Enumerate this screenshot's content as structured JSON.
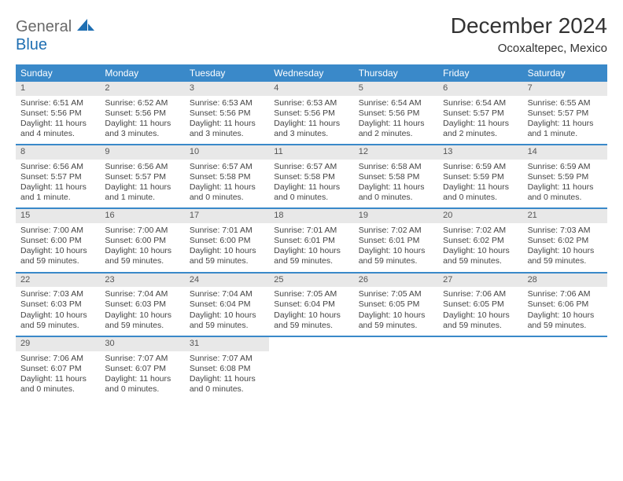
{
  "brand": {
    "word1": "General",
    "word2": "Blue"
  },
  "title": "December 2024",
  "location": "Ocoxaltepec, Mexico",
  "colors": {
    "header_bg": "#3a89c9",
    "header_text": "#ffffff",
    "daynum_bg": "#e8e8e8",
    "rule": "#3a89c9",
    "brand_gray": "#6a6a6a",
    "brand_blue": "#1f6fb2"
  },
  "day_names": [
    "Sunday",
    "Monday",
    "Tuesday",
    "Wednesday",
    "Thursday",
    "Friday",
    "Saturday"
  ],
  "weeks": [
    [
      {
        "n": "1",
        "sr": "Sunrise: 6:51 AM",
        "ss": "Sunset: 5:56 PM",
        "dl": "Daylight: 11 hours and 4 minutes."
      },
      {
        "n": "2",
        "sr": "Sunrise: 6:52 AM",
        "ss": "Sunset: 5:56 PM",
        "dl": "Daylight: 11 hours and 3 minutes."
      },
      {
        "n": "3",
        "sr": "Sunrise: 6:53 AM",
        "ss": "Sunset: 5:56 PM",
        "dl": "Daylight: 11 hours and 3 minutes."
      },
      {
        "n": "4",
        "sr": "Sunrise: 6:53 AM",
        "ss": "Sunset: 5:56 PM",
        "dl": "Daylight: 11 hours and 3 minutes."
      },
      {
        "n": "5",
        "sr": "Sunrise: 6:54 AM",
        "ss": "Sunset: 5:56 PM",
        "dl": "Daylight: 11 hours and 2 minutes."
      },
      {
        "n": "6",
        "sr": "Sunrise: 6:54 AM",
        "ss": "Sunset: 5:57 PM",
        "dl": "Daylight: 11 hours and 2 minutes."
      },
      {
        "n": "7",
        "sr": "Sunrise: 6:55 AM",
        "ss": "Sunset: 5:57 PM",
        "dl": "Daylight: 11 hours and 1 minute."
      }
    ],
    [
      {
        "n": "8",
        "sr": "Sunrise: 6:56 AM",
        "ss": "Sunset: 5:57 PM",
        "dl": "Daylight: 11 hours and 1 minute."
      },
      {
        "n": "9",
        "sr": "Sunrise: 6:56 AM",
        "ss": "Sunset: 5:57 PM",
        "dl": "Daylight: 11 hours and 1 minute."
      },
      {
        "n": "10",
        "sr": "Sunrise: 6:57 AM",
        "ss": "Sunset: 5:58 PM",
        "dl": "Daylight: 11 hours and 0 minutes."
      },
      {
        "n": "11",
        "sr": "Sunrise: 6:57 AM",
        "ss": "Sunset: 5:58 PM",
        "dl": "Daylight: 11 hours and 0 minutes."
      },
      {
        "n": "12",
        "sr": "Sunrise: 6:58 AM",
        "ss": "Sunset: 5:58 PM",
        "dl": "Daylight: 11 hours and 0 minutes."
      },
      {
        "n": "13",
        "sr": "Sunrise: 6:59 AM",
        "ss": "Sunset: 5:59 PM",
        "dl": "Daylight: 11 hours and 0 minutes."
      },
      {
        "n": "14",
        "sr": "Sunrise: 6:59 AM",
        "ss": "Sunset: 5:59 PM",
        "dl": "Daylight: 11 hours and 0 minutes."
      }
    ],
    [
      {
        "n": "15",
        "sr": "Sunrise: 7:00 AM",
        "ss": "Sunset: 6:00 PM",
        "dl": "Daylight: 10 hours and 59 minutes."
      },
      {
        "n": "16",
        "sr": "Sunrise: 7:00 AM",
        "ss": "Sunset: 6:00 PM",
        "dl": "Daylight: 10 hours and 59 minutes."
      },
      {
        "n": "17",
        "sr": "Sunrise: 7:01 AM",
        "ss": "Sunset: 6:00 PM",
        "dl": "Daylight: 10 hours and 59 minutes."
      },
      {
        "n": "18",
        "sr": "Sunrise: 7:01 AM",
        "ss": "Sunset: 6:01 PM",
        "dl": "Daylight: 10 hours and 59 minutes."
      },
      {
        "n": "19",
        "sr": "Sunrise: 7:02 AM",
        "ss": "Sunset: 6:01 PM",
        "dl": "Daylight: 10 hours and 59 minutes."
      },
      {
        "n": "20",
        "sr": "Sunrise: 7:02 AM",
        "ss": "Sunset: 6:02 PM",
        "dl": "Daylight: 10 hours and 59 minutes."
      },
      {
        "n": "21",
        "sr": "Sunrise: 7:03 AM",
        "ss": "Sunset: 6:02 PM",
        "dl": "Daylight: 10 hours and 59 minutes."
      }
    ],
    [
      {
        "n": "22",
        "sr": "Sunrise: 7:03 AM",
        "ss": "Sunset: 6:03 PM",
        "dl": "Daylight: 10 hours and 59 minutes."
      },
      {
        "n": "23",
        "sr": "Sunrise: 7:04 AM",
        "ss": "Sunset: 6:03 PM",
        "dl": "Daylight: 10 hours and 59 minutes."
      },
      {
        "n": "24",
        "sr": "Sunrise: 7:04 AM",
        "ss": "Sunset: 6:04 PM",
        "dl": "Daylight: 10 hours and 59 minutes."
      },
      {
        "n": "25",
        "sr": "Sunrise: 7:05 AM",
        "ss": "Sunset: 6:04 PM",
        "dl": "Daylight: 10 hours and 59 minutes."
      },
      {
        "n": "26",
        "sr": "Sunrise: 7:05 AM",
        "ss": "Sunset: 6:05 PM",
        "dl": "Daylight: 10 hours and 59 minutes."
      },
      {
        "n": "27",
        "sr": "Sunrise: 7:06 AM",
        "ss": "Sunset: 6:05 PM",
        "dl": "Daylight: 10 hours and 59 minutes."
      },
      {
        "n": "28",
        "sr": "Sunrise: 7:06 AM",
        "ss": "Sunset: 6:06 PM",
        "dl": "Daylight: 10 hours and 59 minutes."
      }
    ],
    [
      {
        "n": "29",
        "sr": "Sunrise: 7:06 AM",
        "ss": "Sunset: 6:07 PM",
        "dl": "Daylight: 11 hours and 0 minutes."
      },
      {
        "n": "30",
        "sr": "Sunrise: 7:07 AM",
        "ss": "Sunset: 6:07 PM",
        "dl": "Daylight: 11 hours and 0 minutes."
      },
      {
        "n": "31",
        "sr": "Sunrise: 7:07 AM",
        "ss": "Sunset: 6:08 PM",
        "dl": "Daylight: 11 hours and 0 minutes."
      },
      null,
      null,
      null,
      null
    ]
  ]
}
